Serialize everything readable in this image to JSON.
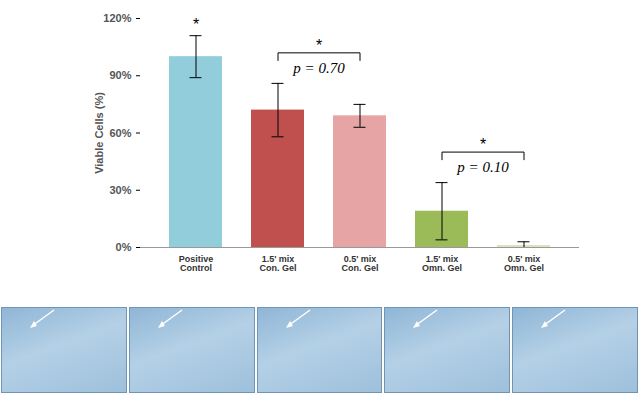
{
  "chart_data": {
    "type": "bar",
    "categories": [
      "Positive Control",
      "1.5' mix Con. Gel",
      "0.5' mix Con. Gel",
      "1.5' mix Omn. Gel",
      "0.5' mix Omn. Gel"
    ],
    "values": [
      100,
      72,
      69,
      19,
      1
    ],
    "errors": [
      11,
      14,
      6,
      15,
      2
    ],
    "colors": [
      "#92cddc",
      "#c0504d",
      "#e6a5a4",
      "#9bbb59",
      "#d7e4bd"
    ],
    "y_label": "Viable Cells (%)",
    "ylim": [
      0,
      120
    ],
    "yticks": [
      {
        "value": 0,
        "label": "0%"
      },
      {
        "value": 30,
        "label": "30%"
      },
      {
        "value": 60,
        "label": "60%"
      },
      {
        "value": 90,
        "label": "90%"
      },
      {
        "value": 120,
        "label": "120%"
      }
    ],
    "grid": false,
    "annotations": [
      {
        "category": "Positive Control",
        "text": "*"
      }
    ],
    "brackets": [
      {
        "categories": [
          "1.5' mix Con. Gel",
          "0.5' mix Con. Gel"
        ],
        "label": "p = 0.70",
        "text": "*"
      },
      {
        "categories": [
          "1.5' mix Omn. Gel",
          "0.5' mix Omn. Gel"
        ],
        "label": "p = 0.10",
        "text": "*"
      }
    ]
  }
}
